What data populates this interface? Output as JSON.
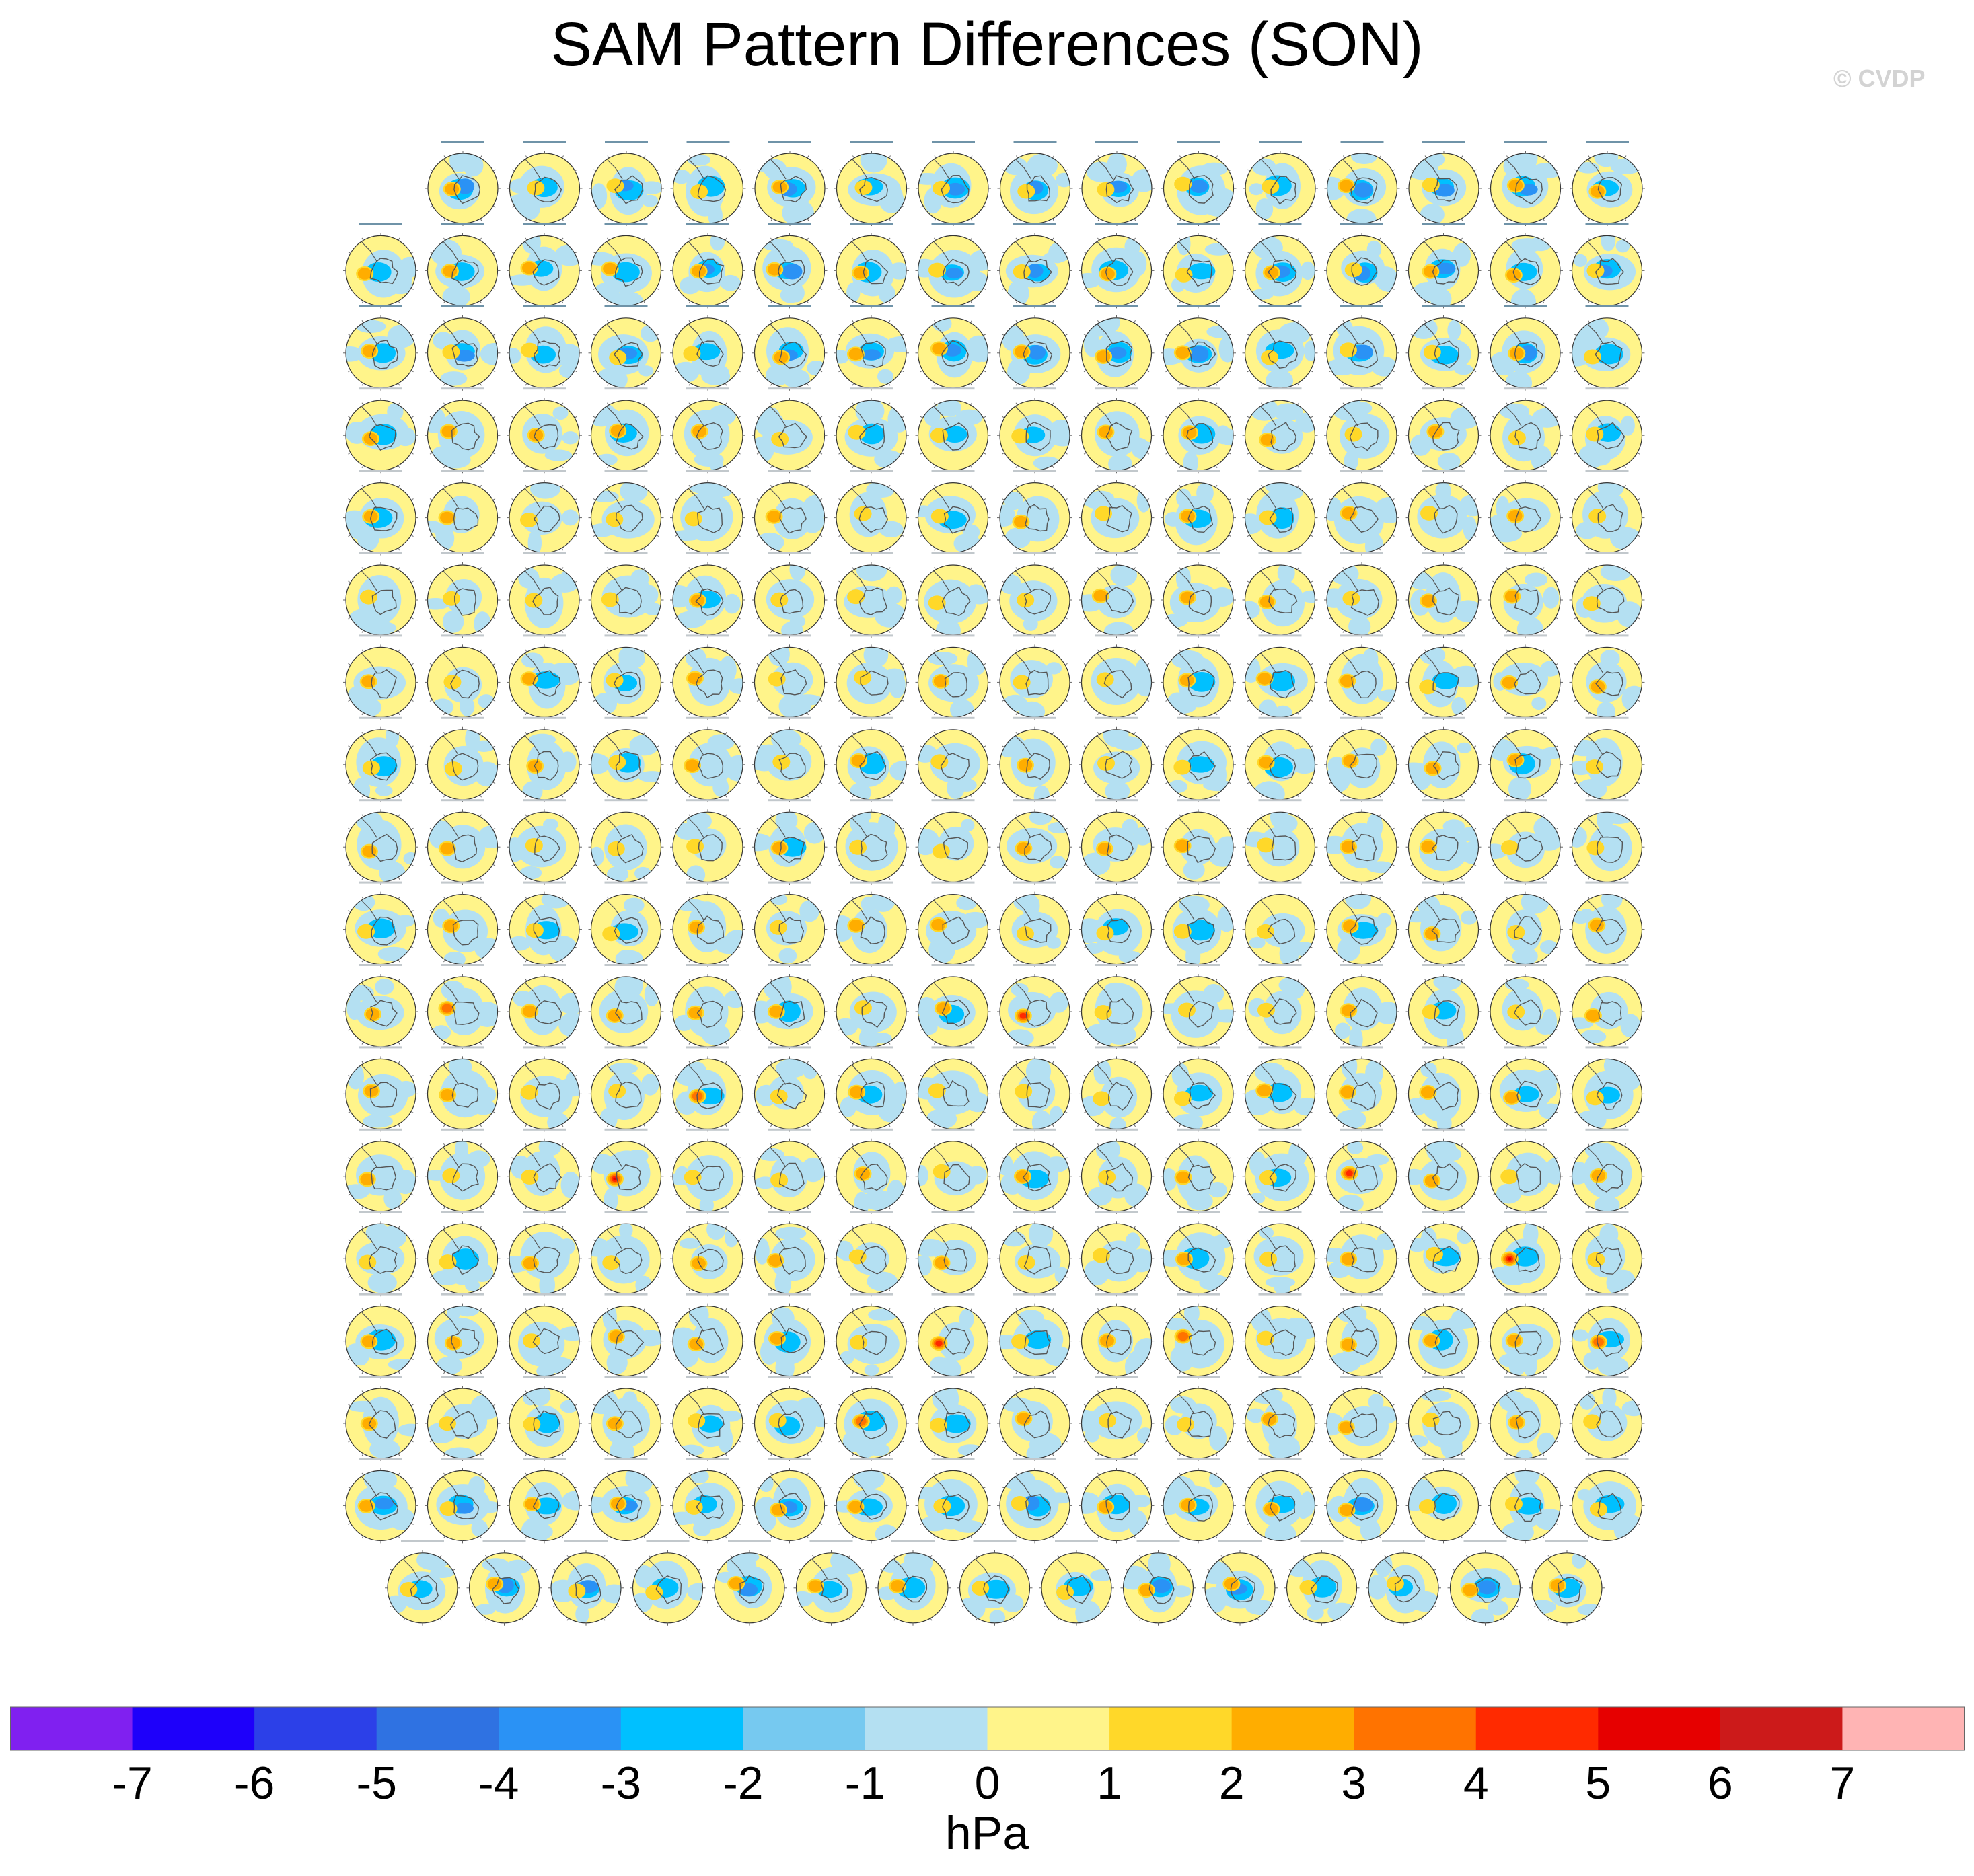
{
  "title": "SAM Pattern Differences (SON)",
  "watermark": "© CVDP",
  "panel_grid": {
    "rows": 18,
    "row_counts": [
      15,
      16,
      16,
      16,
      16,
      16,
      16,
      16,
      16,
      16,
      16,
      16,
      16,
      16,
      16,
      16,
      16,
      15
    ],
    "panel_titles_legible": false,
    "panel_type": "Southern Hemisphere polar projection map"
  },
  "colorbar": {
    "colors": [
      "#8020f0",
      "#1e00fa",
      "#2c40e8",
      "#2f72e2",
      "#2a92f5",
      "#00c0ff",
      "#76c9f0",
      "#b4e0f2",
      "#fff48a",
      "#ffd829",
      "#ffad00",
      "#ff7300",
      "#ff2a00",
      "#e60000",
      "#cc1a1a",
      "#ffb4b4"
    ],
    "labels": [
      "-7",
      "-6",
      "-5",
      "-4",
      "-3",
      "-2",
      "-1",
      "0",
      "1",
      "2",
      "3",
      "4",
      "5",
      "6",
      "7"
    ],
    "units": "hPa"
  }
}
